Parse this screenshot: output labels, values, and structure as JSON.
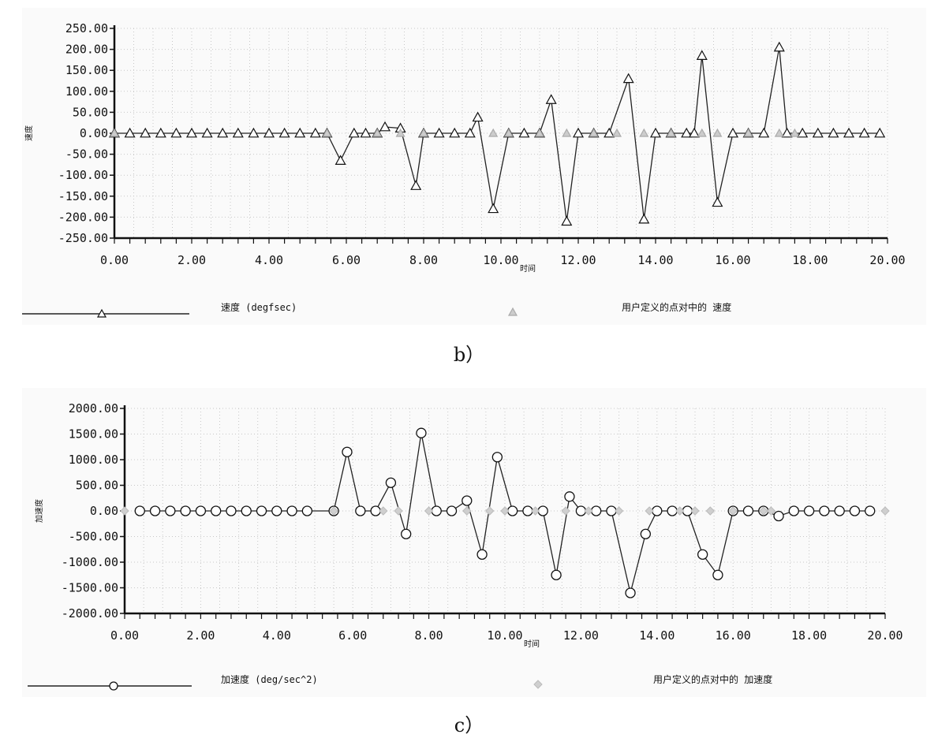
{
  "chart_data": [
    {
      "id": "b",
      "type": "line",
      "caption": "b）",
      "xlabel": "时间",
      "ylabel": "速度",
      "xlim": [
        0,
        20
      ],
      "ylim": [
        -250,
        250
      ],
      "grid": true,
      "x_ticks": [
        "0.00",
        "2.00",
        "4.00",
        "6.00",
        "8.00",
        "10.00",
        "12.00",
        "14.00",
        "16.00",
        "18.00",
        "20.00"
      ],
      "y_ticks": [
        "250.00",
        "200.00",
        "150.00",
        "100.00",
        "50.00",
        "0.00",
        "-50.00",
        "-100.00",
        "-150.00",
        "-200.00",
        "-250.00"
      ],
      "legend": [
        {
          "label": "速度 (degfsec)",
          "marker": "triangle"
        },
        {
          "label": "用户定义的点对中的 速度",
          "marker": "triangle-gray"
        }
      ],
      "series": [
        {
          "name": "速度 (degfsec)",
          "marker": "triangle",
          "x": [
            0,
            0.4,
            0.8,
            1.2,
            1.6,
            2.0,
            2.4,
            2.8,
            3.2,
            3.6,
            4.0,
            4.4,
            4.8,
            5.2,
            5.5,
            5.85,
            6.2,
            6.5,
            6.8,
            7.0,
            7.4,
            7.8,
            8.0,
            8.4,
            8.8,
            9.2,
            9.4,
            9.8,
            10.2,
            10.6,
            11.0,
            11.3,
            11.7,
            12.0,
            12.4,
            12.8,
            13.3,
            13.7,
            14.0,
            14.4,
            14.8,
            15.0,
            15.2,
            15.6,
            16.0,
            16.4,
            16.8,
            17.2,
            17.4,
            17.8,
            18.2,
            18.6,
            19.0,
            19.4,
            19.8
          ],
          "y": [
            0,
            0,
            0,
            0,
            0,
            0,
            0,
            0,
            0,
            0,
            0,
            0,
            0,
            0,
            0,
            -65,
            0,
            0,
            0,
            15,
            12,
            -125,
            0,
            0,
            0,
            0,
            38,
            -180,
            0,
            0,
            0,
            80,
            -210,
            0,
            0,
            0,
            130,
            -205,
            0,
            0,
            0,
            0,
            185,
            -165,
            0,
            0,
            0,
            205,
            0,
            0,
            0,
            0,
            0,
            0,
            0
          ]
        },
        {
          "name": "用户定义的点对中的 速度",
          "marker": "triangle-gray",
          "x": [
            0,
            5.5,
            6.8,
            7.4,
            8.0,
            9.8,
            10.2,
            11.0,
            11.7,
            12.4,
            13.0,
            13.7,
            14.4,
            15.2,
            15.6,
            16.4,
            17.2,
            17.6
          ],
          "y": [
            0,
            0,
            0,
            0,
            0,
            0,
            0,
            0,
            0,
            0,
            0,
            0,
            0,
            0,
            0,
            0,
            0,
            0
          ]
        }
      ]
    },
    {
      "id": "c",
      "type": "line",
      "caption": "c）",
      "xlabel": "时间",
      "ylabel": "加速度",
      "xlim": [
        0,
        20
      ],
      "ylim": [
        -2000,
        2000
      ],
      "grid": true,
      "x_ticks": [
        "0.00",
        "2.00",
        "4.00",
        "6.00",
        "8.00",
        "10.00",
        "12.00",
        "14.00",
        "16.00",
        "18.00",
        "20.00"
      ],
      "y_ticks": [
        "2000.00",
        "1500.00",
        "1000.00",
        "500.00",
        "0.00",
        "-500.00",
        "-1000.00",
        "-1500.00",
        "-2000.00"
      ],
      "legend": [
        {
          "label": "加速度 (deg/sec^2)",
          "marker": "circle"
        },
        {
          "label": "用户定义的点对中的 加速度",
          "marker": "diamond-gray"
        }
      ],
      "series": [
        {
          "name": "加速度 (deg/sec^2)",
          "marker": "circle",
          "x": [
            0.4,
            0.8,
            1.2,
            1.6,
            2.0,
            2.4,
            2.8,
            3.2,
            3.6,
            4.0,
            4.4,
            4.8,
            5.5,
            5.85,
            6.2,
            6.6,
            7.0,
            7.4,
            7.8,
            8.2,
            8.6,
            9.0,
            9.4,
            9.8,
            10.2,
            10.6,
            11.0,
            11.35,
            11.7,
            12.0,
            12.4,
            12.8,
            13.3,
            13.7,
            14.0,
            14.4,
            14.8,
            15.2,
            15.6,
            16.0,
            16.4,
            16.8,
            17.2,
            17.6,
            18.0,
            18.4,
            18.8,
            19.2,
            19.6
          ],
          "y": [
            0,
            0,
            0,
            0,
            0,
            0,
            0,
            0,
            0,
            0,
            0,
            0,
            0,
            1150,
            0,
            0,
            550,
            -450,
            1520,
            0,
            0,
            200,
            -850,
            1050,
            0,
            0,
            0,
            -1250,
            280,
            0,
            0,
            0,
            -1600,
            -450,
            0,
            0,
            0,
            -850,
            -1250,
            0,
            0,
            0,
            -100,
            0,
            0,
            0,
            0,
            0,
            0
          ]
        },
        {
          "name": "用户定义的点对中的 加速度",
          "marker": "diamond-gray",
          "x": [
            0,
            5.5,
            6.8,
            7.2,
            8.0,
            9.0,
            9.6,
            10.0,
            10.8,
            11.6,
            12.2,
            13.0,
            13.8,
            14.6,
            15.0,
            15.4,
            16.0,
            16.8,
            17.0,
            20.0
          ],
          "y": [
            0,
            0,
            0,
            0,
            0,
            0,
            0,
            0,
            0,
            0,
            0,
            0,
            0,
            0,
            0,
            0,
            0,
            0,
            0,
            0
          ]
        }
      ]
    }
  ]
}
